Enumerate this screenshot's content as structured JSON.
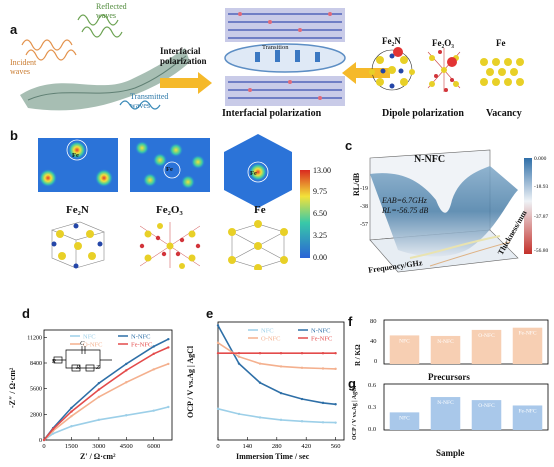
{
  "panels": {
    "a": {
      "label": "a",
      "wave_labels": {
        "incident": "Incident\nwaves",
        "reflected": "Reflected\nwaves",
        "transmitted": "Transmitted\nwaves"
      },
      "arrow_left": "Interfacial\npolarization",
      "transition": "Transition",
      "interfacial": "Interfacial polarization",
      "materials": [
        "Fe₂N",
        "Fe₂O₃",
        "Fe"
      ],
      "dipole": "Dipole polarization",
      "vacancy": "Vacancy"
    },
    "b": {
      "label": "b",
      "fe_tags": [
        "Fe",
        "Fe",
        "Fe"
      ],
      "names": [
        "Fe₂N",
        "Fe₂O₃",
        "Fe"
      ],
      "colorbar_ticks": [
        "13.00",
        "9.75",
        "6.50",
        "3.25",
        "0.00"
      ]
    },
    "c": {
      "label": "c",
      "title": "N-NFC",
      "zlabel": "RL/dB",
      "annotation1": "EAB=6.7GHz",
      "annotation2": "RL=-56.75 dB",
      "xlabel": "Frequency/GHz",
      "ylabel": "Thickness/mm",
      "ticks_left": [
        "-19",
        "-38",
        "-57"
      ],
      "colorbar_ticks": [
        "0.000",
        "-18.93",
        "-37.87",
        "-56.80"
      ]
    },
    "d": {
      "label": "d",
      "xlabel": "Z′ / Ω·cm²",
      "ylabel": "-Z″ / Ω·cm²",
      "circuit": {
        "cdl": "C",
        "rs": "R",
        "rct": "R",
        "zw": "Z"
      }
    },
    "e": {
      "label": "e",
      "xlabel": "Immersion Time / sec",
      "ylabel": "OCP / V vs.Ag | AgCl"
    },
    "f": {
      "label": "f",
      "ylabel": "R / KΩ",
      "xlabel": "Precursors",
      "ytick_labels": [
        "80",
        "40",
        "0"
      ]
    },
    "g": {
      "label": "g",
      "ylabel": "OCP / V vs.Ag | AgCl",
      "xlabel": "Sample",
      "ytick_labels": [
        "0.6",
        "0.3",
        "0.0"
      ]
    }
  },
  "chart_data": [
    {
      "type": "line",
      "panel": "d",
      "xlabel": "Z′ / Ω·cm²",
      "ylabel": "-Z″ / Ω·cm²",
      "xlim": [
        0,
        7000
      ],
      "ylim": [
        0,
        12000
      ],
      "x_ticks": [
        0,
        1500,
        3000,
        4500,
        6000
      ],
      "y_ticks": [
        0,
        2800,
        5600,
        8400,
        11200
      ],
      "series": [
        {
          "name": "NFC",
          "color": "#9ccfe8",
          "x": [
            0,
            500,
            1500,
            3000,
            4500,
            6000,
            6800
          ],
          "y": [
            0,
            700,
            1500,
            2200,
            2700,
            3200,
            3600
          ]
        },
        {
          "name": "N-NFC",
          "color": "#2e6fa7",
          "x": [
            0,
            500,
            1500,
            3000,
            4500,
            6000,
            6800
          ],
          "y": [
            0,
            1300,
            3500,
            6200,
            8300,
            10200,
            11000
          ]
        },
        {
          "name": "O-NFC",
          "color": "#f4b08e",
          "x": [
            0,
            500,
            1500,
            3000,
            4500,
            6000,
            6800
          ],
          "y": [
            0,
            1000,
            2600,
            4700,
            6300,
            7700,
            8300
          ]
        },
        {
          "name": "Fe-NFC",
          "color": "#e34b4b",
          "x": [
            0,
            500,
            1500,
            3000,
            4500,
            6000,
            6800
          ],
          "y": [
            0,
            1200,
            3100,
            5500,
            7600,
            9400,
            10100
          ]
        }
      ]
    },
    {
      "type": "line",
      "panel": "e",
      "xlabel": "Immersion Time / sec",
      "ylabel": "OCP / V vs.Ag | AgCl",
      "xlim": [
        0,
        600
      ],
      "ylim": [
        0.18,
        0.52
      ],
      "x_ticks": [
        0,
        140,
        280,
        420,
        560
      ],
      "series": [
        {
          "name": "NFC",
          "color": "#9ccfe8",
          "x": [
            0,
            100,
            200,
            300,
            400,
            500,
            560
          ],
          "y": [
            0.27,
            0.255,
            0.245,
            0.238,
            0.234,
            0.231,
            0.23
          ]
        },
        {
          "name": "N-NFC",
          "color": "#2e6fa7",
          "x": [
            0,
            100,
            200,
            300,
            400,
            500,
            560
          ],
          "y": [
            0.51,
            0.4,
            0.345,
            0.315,
            0.298,
            0.287,
            0.283
          ]
        },
        {
          "name": "O-NFC",
          "color": "#f4b08e",
          "x": [
            0,
            100,
            200,
            300,
            400,
            500,
            560
          ],
          "y": [
            0.46,
            0.42,
            0.4,
            0.392,
            0.388,
            0.386,
            0.385
          ]
        },
        {
          "name": "Fe-NFC",
          "color": "#e34b4b",
          "x": [
            0,
            100,
            200,
            300,
            400,
            500,
            560
          ],
          "y": [
            0.43,
            0.43,
            0.43,
            0.43,
            0.43,
            0.43,
            0.43
          ]
        }
      ]
    },
    {
      "type": "bar",
      "panel": "f",
      "categories": [
        "NFC",
        "N-NFC",
        "O-NFC",
        "Fe-NFC"
      ],
      "values": [
        52,
        51,
        62,
        66
      ],
      "ylim": [
        0,
        80
      ],
      "color": "#f7cfb3",
      "ylabel": "R / KΩ",
      "xlabel": "Precursors"
    },
    {
      "type": "bar",
      "panel": "g",
      "categories": [
        "NFC",
        "N-NFC",
        "O-NFC",
        "Fe-NFC"
      ],
      "values": [
        0.23,
        0.43,
        0.39,
        0.32
      ],
      "ylim": [
        0,
        0.6
      ],
      "color": "#a9c8ea",
      "ylabel": "OCP / V vs.Ag | AgCl",
      "xlabel": "Sample"
    }
  ]
}
